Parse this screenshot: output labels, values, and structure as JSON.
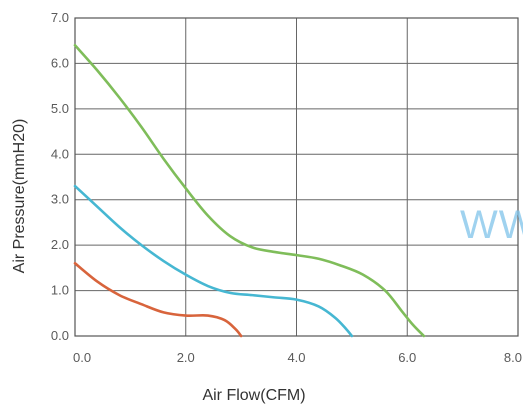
{
  "chart_data": {
    "type": "line",
    "xlabel": "Air Flow(CFM)",
    "ylabel": "Air Pressure(mmH20)",
    "xlim": [
      0,
      8
    ],
    "ylim": [
      0,
      7
    ],
    "x_ticks": [
      "0.0",
      "2.0",
      "4.0",
      "6.0",
      "8.0"
    ],
    "y_ticks": [
      "0.0",
      "1.0",
      "2.0",
      "3.0",
      "4.0",
      "5.0",
      "6.0",
      "7.0"
    ],
    "grid": true,
    "watermark": "WW",
    "series": [
      {
        "color": "#7fbd5a",
        "x": [
          0,
          0.4,
          0.8,
          1.2,
          1.6,
          2.0,
          2.4,
          2.8,
          3.2,
          3.6,
          4.0,
          4.4,
          4.8,
          5.2,
          5.6,
          5.9,
          6.1,
          6.3
        ],
        "y": [
          6.4,
          5.85,
          5.25,
          4.6,
          3.9,
          3.25,
          2.65,
          2.2,
          1.95,
          1.85,
          1.78,
          1.7,
          1.55,
          1.35,
          1.0,
          0.55,
          0.25,
          0.0
        ]
      },
      {
        "color": "#46b7d2",
        "x": [
          0,
          0.4,
          0.8,
          1.2,
          1.6,
          2.0,
          2.4,
          2.8,
          3.2,
          3.6,
          4.0,
          4.4,
          4.7,
          4.9,
          5.0
        ],
        "y": [
          3.3,
          2.85,
          2.4,
          2.0,
          1.65,
          1.35,
          1.1,
          0.95,
          0.9,
          0.85,
          0.8,
          0.65,
          0.4,
          0.15,
          0.0
        ]
      },
      {
        "color": "#d8643c",
        "x": [
          0,
          0.4,
          0.8,
          1.2,
          1.6,
          2.0,
          2.4,
          2.7,
          2.9,
          3.0
        ],
        "y": [
          1.6,
          1.2,
          0.9,
          0.7,
          0.52,
          0.45,
          0.45,
          0.35,
          0.15,
          0.0
        ]
      }
    ]
  }
}
